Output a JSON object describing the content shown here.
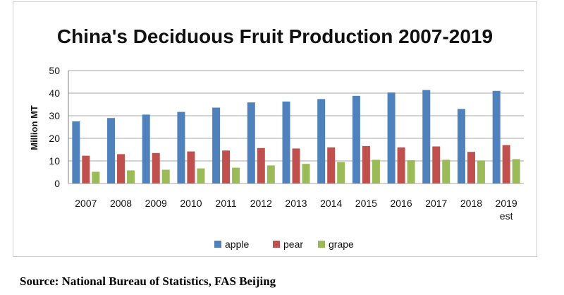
{
  "chart_data": {
    "type": "bar",
    "title": "China's Deciduous Fruit Production 2007-2019",
    "ylabel": "Million MT",
    "xlabel": "",
    "ylim": [
      0,
      50
    ],
    "yticks": [
      0,
      10,
      20,
      30,
      40,
      50
    ],
    "categories": [
      "2007",
      "2008",
      "2009",
      "2010",
      "2011",
      "2012",
      "2013",
      "2014",
      "2015",
      "2016",
      "2017",
      "2018",
      "2019\nest"
    ],
    "series": [
      {
        "name": "apple",
        "color": "#4f81bd",
        "values": [
          27.5,
          29,
          30.5,
          31.7,
          33.6,
          35.9,
          36.3,
          37.4,
          38.8,
          40.3,
          41.4,
          33,
          41
        ]
      },
      {
        "name": "pear",
        "color": "#c0504d",
        "values": [
          12.3,
          13,
          13.5,
          14.2,
          14.6,
          15.7,
          15.5,
          16,
          16.6,
          16,
          16.4,
          14,
          17
        ]
      },
      {
        "name": "grape",
        "color": "#9bbb59",
        "values": [
          5.2,
          5.8,
          6.1,
          6.7,
          7,
          8,
          8.7,
          9.5,
          10.5,
          10.3,
          10.5,
          10.2,
          10.8
        ]
      }
    ],
    "grid": true,
    "legend": "bottom-center"
  },
  "footer": {
    "source": "Source: National Bureau of Statistics, FAS Beijing"
  }
}
